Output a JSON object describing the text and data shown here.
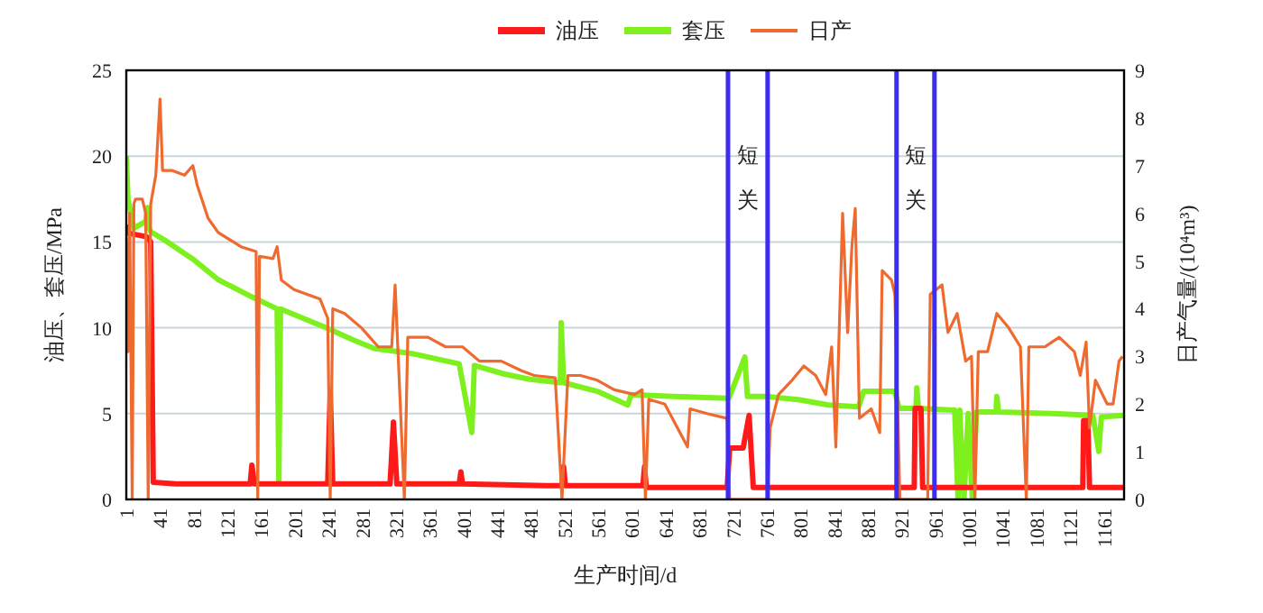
{
  "chart_data": {
    "type": "line",
    "xlabel": "生产时间/d",
    "ylabel": "油压、套压/MPa",
    "y2label": "日产气量/(10⁴m³)",
    "xlim": [
      1,
      1185
    ],
    "xticks": [
      1,
      41,
      81,
      121,
      161,
      201,
      241,
      281,
      321,
      361,
      401,
      441,
      481,
      521,
      561,
      601,
      641,
      681,
      721,
      761,
      801,
      841,
      881,
      921,
      961,
      1001,
      1041,
      1081,
      1121,
      1161
    ],
    "ylim": [
      0,
      25
    ],
    "yticks": [
      0,
      5,
      10,
      15,
      20,
      25
    ],
    "y2lim": [
      0,
      9
    ],
    "y2ticks": [
      0,
      1,
      2,
      3,
      4,
      5,
      6,
      7,
      8,
      9
    ],
    "grid": "y",
    "legend": "top",
    "series": [
      {
        "name": "套压",
        "color": "#7df01e",
        "x": [
          1,
          3,
          10,
          24,
          26,
          28,
          30,
          50,
          80,
          110,
          150,
          180,
          182,
          184,
          238,
          270,
          295,
          340,
          396,
          411,
          414,
          450,
          480,
          516,
          517,
          520,
          560,
          596,
          600,
          650,
          714,
          716,
          725,
          735,
          738,
          760,
          800,
          834,
          870,
          876,
          913,
          918,
          938,
          939,
          941,
          984,
          988,
          990,
          995,
          1000,
          1005,
          1010,
          1013,
          1033,
          1034,
          1036,
          1100,
          1148,
          1155,
          1158,
          1185
        ],
        "values": [
          20,
          17.5,
          15.8,
          16.2,
          17,
          15.8,
          15.6,
          15,
          14,
          12.8,
          11.8,
          11.1,
          1,
          11.1,
          10,
          9.3,
          8.8,
          8.5,
          7.9,
          3.9,
          7.8,
          7.3,
          7,
          6.8,
          10.3,
          6.8,
          6.3,
          5.5,
          6.1,
          6,
          5.9,
          5.9,
          7,
          8.3,
          6,
          6,
          5.8,
          5.5,
          5.4,
          6.3,
          6.3,
          5.3,
          5.3,
          6.5,
          5.3,
          5.2,
          0,
          5.2,
          0,
          5,
          0,
          5.1,
          5.1,
          5.1,
          6,
          5.1,
          5,
          4.9,
          2.8,
          4.8,
          4.9
        ]
      },
      {
        "name": "油压",
        "color": "#ff1a1a",
        "x": [
          1,
          3,
          5,
          25,
          30,
          33,
          60,
          100,
          148,
          150,
          153,
          240,
          243,
          246,
          314,
          318,
          322,
          396,
          398,
          400,
          500,
          518,
          520,
          522,
          600,
          614,
          616,
          618,
          700,
          714,
          717,
          733,
          740,
          745,
          800,
          900,
          936,
          937,
          944,
          946,
          1000,
          1100,
          1136,
          1137,
          1142,
          1144,
          1185
        ],
        "values": [
          16,
          15.5,
          15.5,
          15.3,
          15,
          1,
          0.9,
          0.9,
          0.9,
          2,
          0.9,
          0.9,
          6.3,
          0.9,
          0.9,
          4.5,
          0.9,
          0.9,
          1.6,
          0.9,
          0.8,
          0.8,
          1.9,
          0.8,
          0.8,
          0.8,
          1.9,
          0.7,
          0.7,
          0.7,
          3,
          3,
          4.9,
          0.7,
          0.7,
          0.7,
          0.7,
          5.3,
          5.3,
          0.7,
          0.7,
          0.7,
          0.7,
          4.6,
          4.6,
          0.7,
          0.7
        ]
      },
      {
        "name": "日产",
        "color": "#ee6a2e",
        "axis": "y2",
        "x": [
          1,
          3,
          5,
          8,
          10,
          12,
          20,
          24,
          27,
          30,
          36,
          41,
          44,
          55,
          70,
          80,
          85,
          98,
          110,
          137,
          155,
          157,
          159,
          175,
          180,
          185,
          200,
          231,
          240,
          243,
          246,
          260,
          280,
          300,
          316,
          320,
          331,
          335,
          359,
          380,
          400,
          420,
          446,
          470,
          485,
          510,
          518,
          525,
          540,
          560,
          580,
          604,
          613,
          617,
          621,
          640,
          667,
          670,
          690,
          714,
          717,
          762,
          765,
          775,
          791,
          805,
          819,
          831,
          838,
          843,
          851,
          857,
          862,
          866,
          871,
          885,
          895,
          898,
          909,
          913,
          919,
          952,
          955,
          969,
          976,
          987,
          997,
          1004,
          1008,
          1012,
          1023,
          1034,
          1048,
          1062,
          1069,
          1072,
          1091,
          1108,
          1126,
          1133,
          1140,
          1144,
          1151,
          1165,
          1172,
          1179,
          1183
        ],
        "values": [
          5.5,
          3.1,
          6,
          0,
          6.2,
          6.3,
          6.3,
          6,
          0,
          6.2,
          6.8,
          8.4,
          6.9,
          6.9,
          6.8,
          7,
          6.6,
          5.9,
          5.6,
          5.3,
          5.2,
          0,
          5.1,
          5.05,
          5.3,
          4.6,
          4.4,
          4.2,
          3.8,
          0,
          4,
          3.9,
          3.6,
          3.2,
          3.2,
          4.5,
          0,
          3.4,
          3.4,
          3.2,
          3.2,
          2.9,
          2.9,
          2.7,
          2.6,
          2.55,
          0,
          2.6,
          2.6,
          2.5,
          2.3,
          2.2,
          2.3,
          0,
          2.1,
          2,
          1.1,
          1.9,
          1.8,
          1.7,
          0,
          0,
          1.5,
          2.2,
          2.5,
          2.8,
          2.6,
          2.2,
          3.2,
          1.1,
          6,
          3.5,
          5.3,
          6.1,
          1.7,
          1.9,
          1.4,
          4.8,
          4.6,
          4.3,
          0,
          0,
          4.3,
          4.5,
          3.5,
          3.9,
          2.9,
          3,
          0,
          3.1,
          3.1,
          3.9,
          3.6,
          3.2,
          0,
          3.2,
          3.2,
          3.4,
          3.1,
          2.6,
          3.3,
          1.5,
          2.5,
          2,
          2,
          2.9,
          3
        ]
      }
    ],
    "ref_lines": [
      {
        "axis": "x",
        "value": 715,
        "color": "#3d2cf2"
      },
      {
        "axis": "x",
        "value": 762,
        "color": "#3d2cf2"
      },
      {
        "axis": "x",
        "value": 915,
        "color": "#3d2cf2"
      },
      {
        "axis": "x",
        "value": 960,
        "color": "#3d2cf2"
      }
    ],
    "annotations": [
      "短关",
      "短关"
    ]
  }
}
